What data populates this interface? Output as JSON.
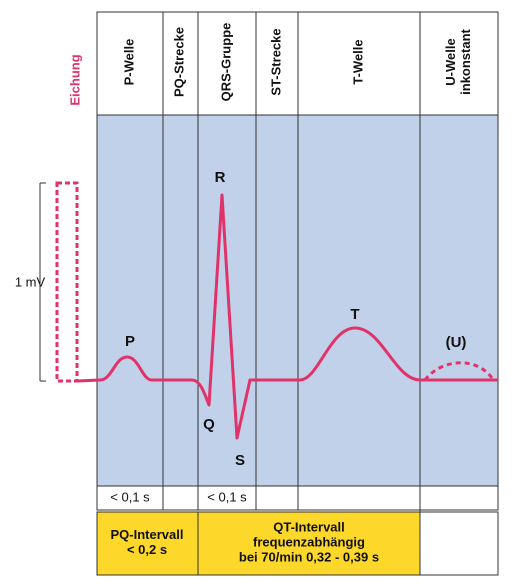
{
  "calibration": {
    "label": "Eichung",
    "amplitude": "1 mV"
  },
  "columns": [
    {
      "lines": [
        "P-Welle"
      ]
    },
    {
      "lines": [
        "PQ-Strecke"
      ]
    },
    {
      "lines": [
        "QRS-Gruppe"
      ]
    },
    {
      "lines": [
        "ST-Strecke"
      ]
    },
    {
      "lines": [
        "T-Welle"
      ]
    },
    {
      "lines": [
        "U-Welle",
        "inkonstant"
      ]
    }
  ],
  "waves": {
    "p": "P",
    "r": "R",
    "q": "Q",
    "s": "S",
    "t": "T",
    "u": "(U)"
  },
  "durations": {
    "p": "< 0,1 s",
    "qrs": "< 0,1 s"
  },
  "intervals": {
    "pq": [
      "PQ-Intervall",
      "< 0,2 s"
    ],
    "qt": [
      "QT-Intervall",
      "frequenzabhängig",
      "bei 70/min  0,32 - 0,39 s"
    ]
  }
}
